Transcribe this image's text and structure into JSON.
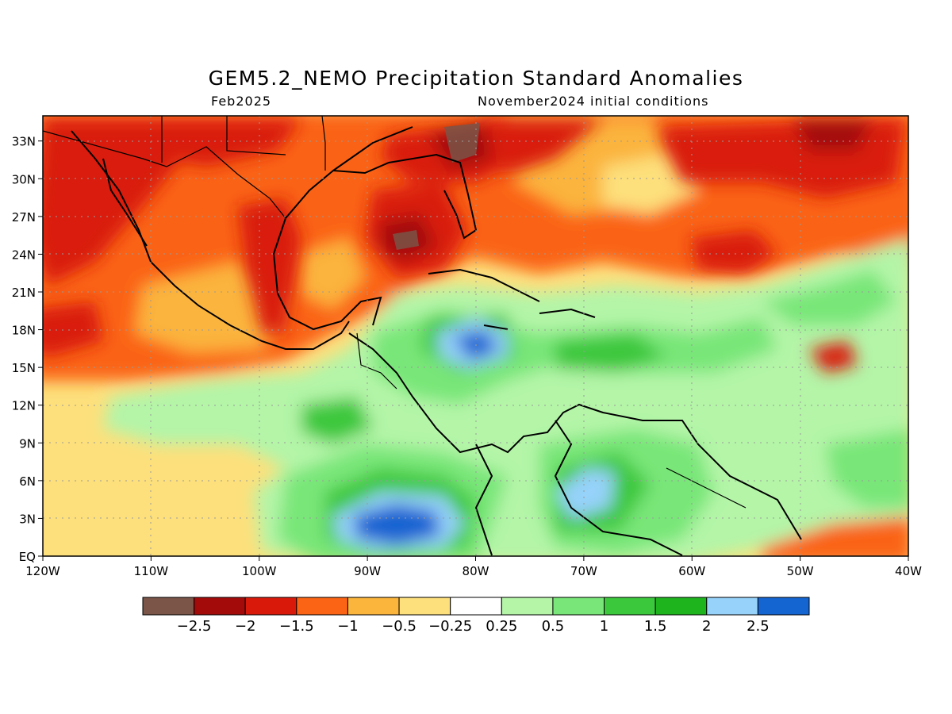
{
  "header": {
    "title": "GEM5.2_NEMO Precipitation Standard Anomalies",
    "valid_month": "Feb2025",
    "init_conditions": "November2024 initial conditions"
  },
  "map": {
    "lat_labels": [
      "33N",
      "30N",
      "27N",
      "24N",
      "21N",
      "18N",
      "15N",
      "12N",
      "9N",
      "6N",
      "3N",
      "EQ"
    ],
    "lon_labels": [
      "120W",
      "110W",
      "100W",
      "90W",
      "80W",
      "70W",
      "60W",
      "50W",
      "40W"
    ],
    "lat_range": [
      0,
      35
    ],
    "lon_range": [
      -120,
      -40
    ],
    "grid": true
  },
  "colorbar": {
    "colors": [
      "#7a5548",
      "#a30a0a",
      "#d91a0a",
      "#fa6414",
      "#fbb43c",
      "#fde07c",
      "#ffffff",
      "#b4f5a8",
      "#78e678",
      "#3cc83c",
      "#1eb41e",
      "#96d2fa",
      "#1464d2"
    ],
    "labels": [
      "−2.5",
      "−2",
      "−1.5",
      "−1",
      "−0.5",
      "−0.25",
      "0.25",
      "0.5",
      "1",
      "1.5",
      "2",
      "2.5"
    ]
  }
}
